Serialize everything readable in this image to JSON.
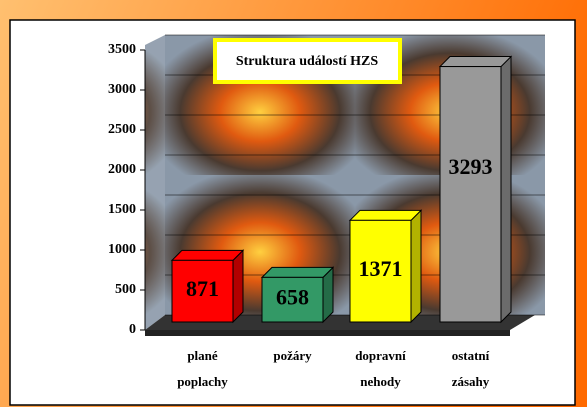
{
  "chart_data": {
    "type": "bar",
    "title": "Struktura událostí HZS",
    "categories": [
      "plané poplachy",
      "požáry",
      "dopravní nehody",
      "ostatní zásahy"
    ],
    "values": [
      871,
      658,
      1371,
      3293
    ],
    "colors": [
      "#ff0000",
      "#339966",
      "#ffff00",
      "#999999"
    ],
    "ylim": [
      0,
      3500
    ],
    "yticks": [
      0,
      500,
      1000,
      1500,
      2000,
      2500,
      3000,
      3500
    ],
    "grid": true
  }
}
